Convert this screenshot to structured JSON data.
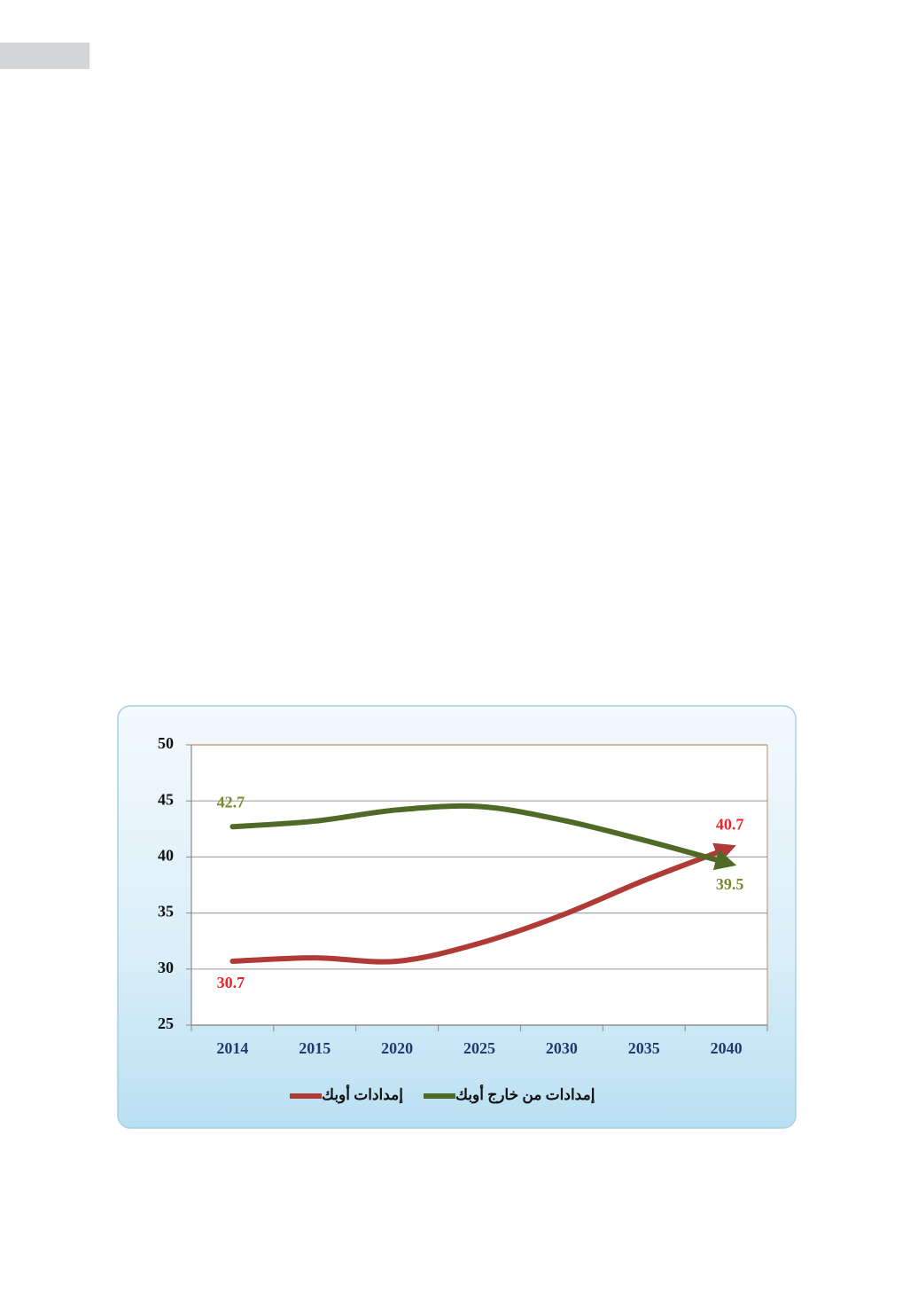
{
  "chart_data": {
    "type": "line",
    "categories": [
      "2014",
      "2015",
      "2020",
      "2025",
      "2030",
      "2035",
      "2040"
    ],
    "series": [
      {
        "name": "إمدادات أوبك",
        "color": "#b03a36",
        "label_color": "#e8262b",
        "values": [
          30.7,
          31.0,
          30.7,
          32.3,
          34.8,
          37.9,
          40.7
        ]
      },
      {
        "name": "إمدادات من خارج أوبك",
        "color": "#4f6a26",
        "label_color": "#7a8a2a",
        "values": [
          42.7,
          43.2,
          44.2,
          44.5,
          43.3,
          41.5,
          39.5
        ]
      }
    ],
    "ylim": [
      25,
      50
    ],
    "yticks": [
      25,
      30,
      35,
      40,
      45,
      50
    ],
    "grid": true,
    "data_labels": "first-last",
    "smooth": true,
    "end_arrows": true,
    "legend": "bottom"
  }
}
